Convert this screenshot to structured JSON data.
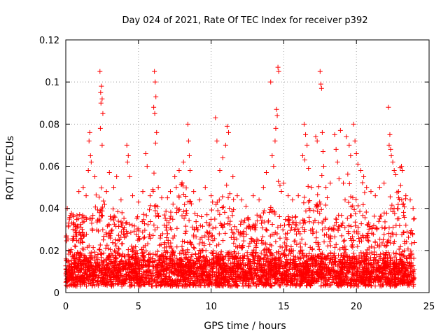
{
  "chart_data": {
    "type": "scatter",
    "title": "Day 024 of 2021, Rate Of TEC Index for receiver p392",
    "xlabel": "GPS time / hours",
    "ylabel": "ROTI / TECUs",
    "xlim": [
      0,
      25
    ],
    "ylim": [
      0,
      0.12
    ],
    "xticks": [
      0,
      5,
      10,
      15,
      20,
      25
    ],
    "xtick_labels": [
      "0",
      "5",
      "10",
      "15",
      "20",
      "25"
    ],
    "yticks": [
      0,
      0.02,
      0.04,
      0.06,
      0.08,
      0.1,
      0.12
    ],
    "ytick_labels": [
      "0",
      "0.02",
      "0.04",
      "0.06",
      "0.08",
      "0.1",
      "0.12"
    ],
    "grid": true,
    "marker": "+",
    "color": "#ff0000",
    "series": [
      {
        "name": "ROTI",
        "points": [
          [
            2.35,
            0.105
          ],
          [
            2.45,
            0.098
          ],
          [
            2.4,
            0.095
          ],
          [
            2.5,
            0.092
          ],
          [
            2.42,
            0.09
          ],
          [
            2.55,
            0.085
          ],
          [
            2.38,
            0.078
          ],
          [
            2.5,
            0.07
          ],
          [
            1.65,
            0.076
          ],
          [
            1.6,
            0.072
          ],
          [
            1.7,
            0.065
          ],
          [
            1.75,
            0.062
          ],
          [
            1.55,
            0.058
          ],
          [
            6.1,
            0.105
          ],
          [
            6.15,
            0.1
          ],
          [
            6.2,
            0.093
          ],
          [
            6.05,
            0.088
          ],
          [
            6.12,
            0.085
          ],
          [
            6.25,
            0.076
          ],
          [
            6.18,
            0.071
          ],
          [
            5.5,
            0.066
          ],
          [
            5.6,
            0.06
          ],
          [
            4.2,
            0.07
          ],
          [
            4.3,
            0.065
          ],
          [
            4.25,
            0.062
          ],
          [
            4.4,
            0.055
          ],
          [
            3.5,
            0.055
          ],
          [
            3.0,
            0.057
          ],
          [
            8.4,
            0.08
          ],
          [
            8.45,
            0.072
          ],
          [
            8.5,
            0.065
          ],
          [
            8.55,
            0.058
          ],
          [
            7.8,
            0.058
          ],
          [
            7.5,
            0.055
          ],
          [
            8.1,
            0.062
          ],
          [
            10.3,
            0.083
          ],
          [
            10.4,
            0.072
          ],
          [
            11.1,
            0.079
          ],
          [
            11.2,
            0.076
          ],
          [
            11.0,
            0.07
          ],
          [
            10.8,
            0.064
          ],
          [
            10.6,
            0.058
          ],
          [
            11.5,
            0.055
          ],
          [
            14.1,
            0.1
          ],
          [
            14.6,
            0.107
          ],
          [
            14.65,
            0.105
          ],
          [
            14.5,
            0.087
          ],
          [
            14.55,
            0.084
          ],
          [
            14.45,
            0.078
          ],
          [
            14.4,
            0.072
          ],
          [
            14.2,
            0.065
          ],
          [
            14.3,
            0.06
          ],
          [
            13.8,
            0.057
          ],
          [
            16.4,
            0.08
          ],
          [
            16.5,
            0.075
          ],
          [
            16.6,
            0.07
          ],
          [
            16.3,
            0.065
          ],
          [
            16.45,
            0.063
          ],
          [
            16.7,
            0.059
          ],
          [
            17.2,
            0.074
          ],
          [
            17.3,
            0.072
          ],
          [
            17.5,
            0.105
          ],
          [
            17.55,
            0.099
          ],
          [
            17.6,
            0.097
          ],
          [
            17.65,
            0.076
          ],
          [
            17.7,
            0.067
          ],
          [
            17.75,
            0.06
          ],
          [
            18.9,
            0.077
          ],
          [
            18.5,
            0.075
          ],
          [
            18.6,
            0.068
          ],
          [
            18.7,
            0.062
          ],
          [
            19.3,
            0.074
          ],
          [
            19.5,
            0.07
          ],
          [
            19.6,
            0.065
          ],
          [
            19.8,
            0.08
          ],
          [
            19.9,
            0.072
          ],
          [
            20.0,
            0.066
          ],
          [
            20.1,
            0.061
          ],
          [
            20.3,
            0.058
          ],
          [
            20.5,
            0.055
          ],
          [
            22.2,
            0.088
          ],
          [
            22.3,
            0.075
          ],
          [
            22.25,
            0.07
          ],
          [
            22.35,
            0.068
          ],
          [
            22.4,
            0.065
          ],
          [
            22.5,
            0.062
          ],
          [
            22.6,
            0.058
          ],
          [
            22.7,
            0.056
          ],
          [
            23.1,
            0.06
          ],
          [
            23.15,
            0.058
          ],
          [
            0.1,
            0.04
          ],
          [
            0.2,
            0.033
          ],
          [
            0.5,
            0.03
          ],
          [
            0.9,
            0.048
          ],
          [
            1.2,
            0.05
          ],
          [
            1.4,
            0.046
          ],
          [
            2.0,
            0.055
          ],
          [
            2.8,
            0.048
          ],
          [
            3.3,
            0.05
          ],
          [
            3.8,
            0.044
          ],
          [
            4.6,
            0.046
          ],
          [
            5.0,
            0.043
          ],
          [
            5.3,
            0.048
          ],
          [
            5.8,
            0.046
          ],
          [
            6.6,
            0.045
          ],
          [
            7.0,
            0.045
          ],
          [
            7.2,
            0.048
          ],
          [
            7.6,
            0.05
          ],
          [
            8.0,
            0.052
          ],
          [
            8.8,
            0.048
          ],
          [
            9.2,
            0.044
          ],
          [
            9.6,
            0.05
          ],
          [
            10.0,
            0.046
          ],
          [
            10.1,
            0.043
          ],
          [
            11.8,
            0.046
          ],
          [
            12.1,
            0.044
          ],
          [
            12.4,
            0.041
          ],
          [
            12.9,
            0.046
          ],
          [
            13.3,
            0.044
          ],
          [
            13.6,
            0.05
          ],
          [
            15.0,
            0.052
          ],
          [
            15.3,
            0.046
          ],
          [
            15.6,
            0.044
          ],
          [
            16.0,
            0.046
          ],
          [
            16.9,
            0.05
          ],
          [
            17.9,
            0.05
          ],
          [
            18.2,
            0.052
          ],
          [
            18.8,
            0.054
          ],
          [
            19.1,
            0.052
          ],
          [
            20.7,
            0.05
          ],
          [
            21.0,
            0.048
          ],
          [
            21.3,
            0.046
          ],
          [
            21.6,
            0.05
          ],
          [
            21.9,
            0.052
          ],
          [
            22.9,
            0.048
          ],
          [
            23.4,
            0.046
          ],
          [
            23.7,
            0.044
          ],
          [
            23.9,
            0.04
          ]
        ]
      }
    ],
    "dense_band": {
      "x_range": [
        0,
        24
      ],
      "typical_floor": 0.003,
      "typical_core": [
        0.005,
        0.02
      ]
    }
  }
}
